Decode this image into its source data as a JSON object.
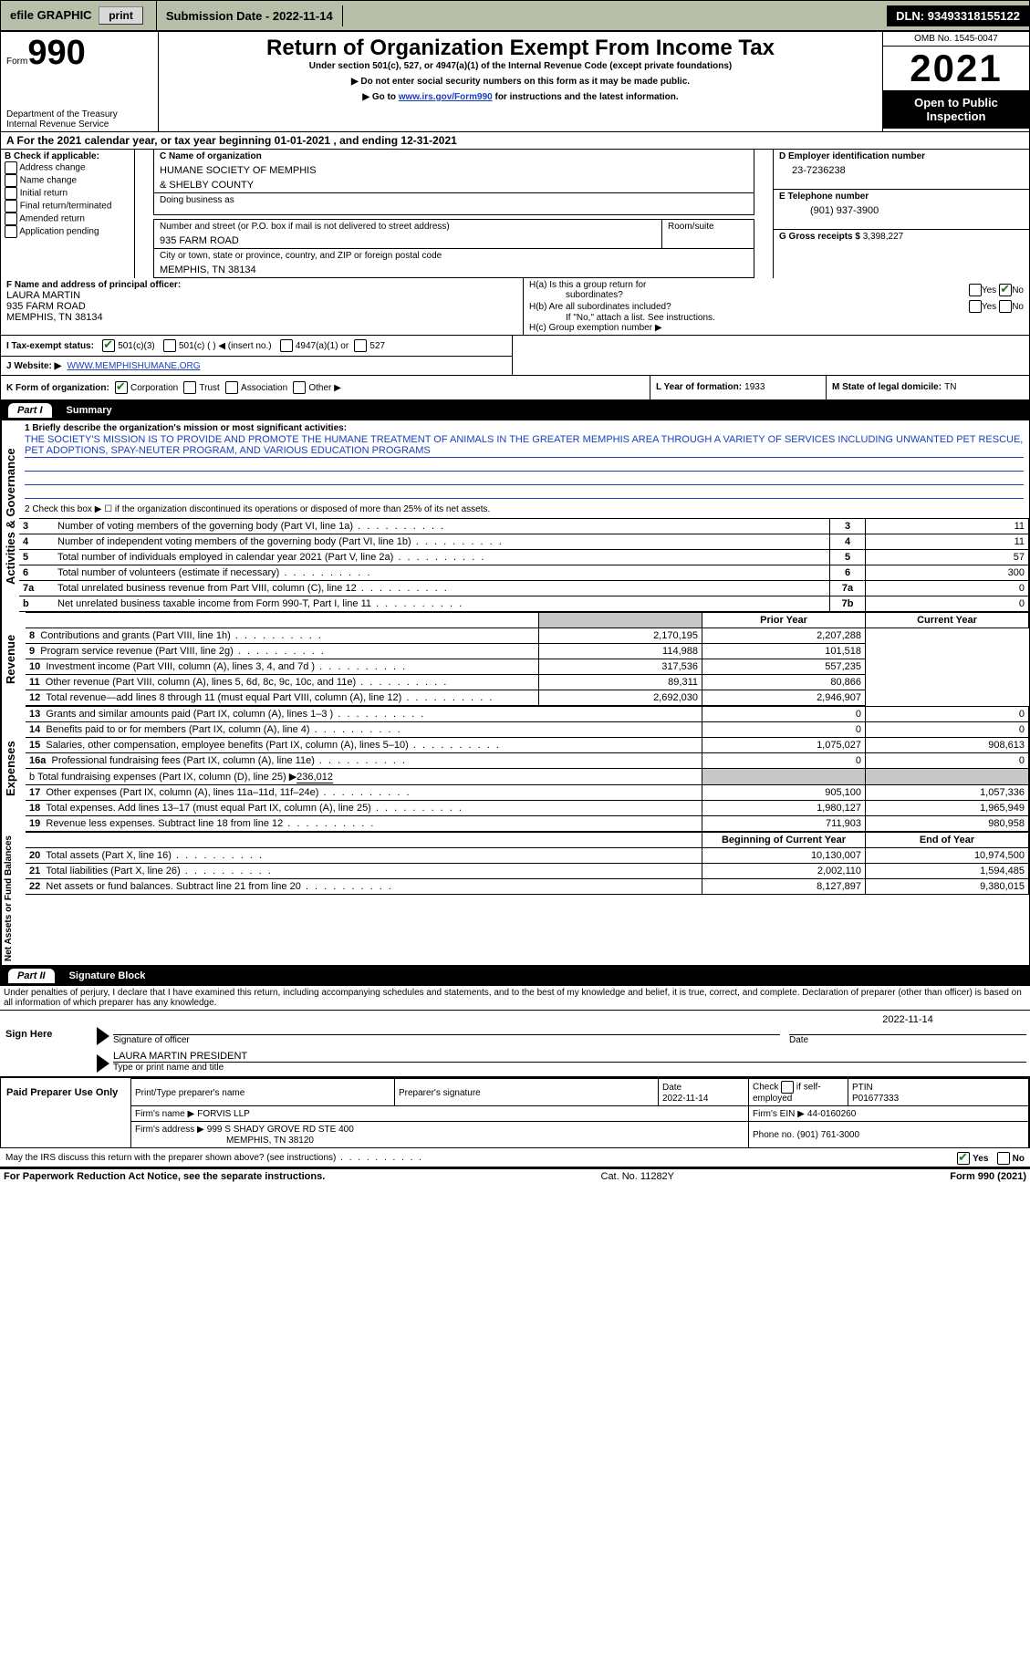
{
  "topbar": {
    "efile": "efile GRAPHIC",
    "print": "print",
    "submission_label": "Submission Date - ",
    "submission_date": "2022-11-14",
    "dln_label": "DLN: ",
    "dln": "93493318155122"
  },
  "header": {
    "form_label": "Form",
    "form_num": "990",
    "dept1": "Department of the Treasury",
    "dept2": "Internal Revenue Service",
    "title": "Return of Organization Exempt From Income Tax",
    "sub1": "Under section 501(c), 527, or 4947(a)(1) of the Internal Revenue Code (except private foundations)",
    "sub2": "▶ Do not enter social security numbers on this form as it may be made public.",
    "sub3_pre": "▶ Go to ",
    "sub3_link": "www.irs.gov/Form990",
    "sub3_post": " for instructions and the latest information.",
    "omb": "OMB No. 1545-0047",
    "year": "2021",
    "open": "Open to Public Inspection"
  },
  "a_line": {
    "pre": "A For the 2021 calendar year, or tax year beginning ",
    "begin": "01-01-2021",
    "mid": " , and ending ",
    "end": "12-31-2021"
  },
  "section_b": {
    "label": "B Check if applicable:",
    "items": [
      "Address change",
      "Name change",
      "Initial return",
      "Final return/terminated",
      "Amended return",
      "Application pending"
    ]
  },
  "section_c": {
    "name_label": "C Name of organization",
    "name1": "HUMANE SOCIETY OF MEMPHIS",
    "name2": "& SHELBY COUNTY",
    "dba_label": "Doing business as",
    "addr_label": "Number and street (or P.O. box if mail is not delivered to street address)",
    "room_label": "Room/suite",
    "addr": "935 FARM ROAD",
    "city_label": "City or town, state or province, country, and ZIP or foreign postal code",
    "city": "MEMPHIS, TN  38134"
  },
  "section_d": {
    "label": "D Employer identification number",
    "value": "23-7236238"
  },
  "section_e": {
    "label": "E Telephone number",
    "value": "(901) 937-3900"
  },
  "section_g": {
    "label": "G Gross receipts $",
    "value": "3,398,227"
  },
  "section_f": {
    "label": "F  Name and address of principal officer:",
    "name": "LAURA MARTIN",
    "addr": "935 FARM ROAD",
    "city": "MEMPHIS, TN  38134"
  },
  "section_h": {
    "ha1": "H(a)  Is this a group return for",
    "ha2": "subordinates?",
    "hb1": "H(b)  Are all subordinates included?",
    "hb2": "If \"No,\" attach a list. See instructions.",
    "hc": "H(c)  Group exemption number ▶",
    "yes": "Yes",
    "no": "No"
  },
  "section_i": {
    "label": "I    Tax-exempt status:",
    "opts": [
      "501(c)(3)",
      "501(c) (   ) ◀ (insert no.)",
      "4947(a)(1) or",
      "527"
    ]
  },
  "section_j": {
    "label": "J   Website: ▶",
    "value": "WWW.MEMPHISHUMANE.ORG"
  },
  "section_k": {
    "label": "K Form of organization:",
    "opts": [
      "Corporation",
      "Trust",
      "Association",
      "Other ▶"
    ]
  },
  "section_l": {
    "label": "L Year of formation:",
    "value": "1933"
  },
  "section_m": {
    "label": "M State of legal domicile:",
    "value": "TN"
  },
  "part1": {
    "label": "Part I",
    "title": "Summary"
  },
  "summary": {
    "sidebar": "Activities & Governance",
    "q1_label": "1  Briefly describe the organization's mission or most significant activities:",
    "q1_text": "THE SOCIETY'S MISSION IS TO PROVIDE AND PROMOTE THE HUMANE TREATMENT OF ANIMALS IN THE GREATER MEMPHIS AREA THROUGH A VARIETY OF SERVICES INCLUDING UNWANTED PET RESCUE, PET ADOPTIONS, SPAY-NEUTER PROGRAM, AND VARIOUS EDUCATION PROGRAMS",
    "q2": "2   Check this box ▶ ☐ if the organization discontinued its operations or disposed of more than 25% of its net assets.",
    "rows": [
      {
        "n": "3",
        "t": "Number of voting members of the governing body (Part VI, line 1a)",
        "c": "3",
        "v": "11"
      },
      {
        "n": "4",
        "t": "Number of independent voting members of the governing body (Part VI, line 1b)",
        "c": "4",
        "v": "11"
      },
      {
        "n": "5",
        "t": "Total number of individuals employed in calendar year 2021 (Part V, line 2a)",
        "c": "5",
        "v": "57"
      },
      {
        "n": "6",
        "t": "Total number of volunteers (estimate if necessary)",
        "c": "6",
        "v": "300"
      },
      {
        "n": "7a",
        "t": "Total unrelated business revenue from Part VIII, column (C), line 12",
        "c": "7a",
        "v": "0"
      },
      {
        "n": "b",
        "t": "Net unrelated business taxable income from Form 990-T, Part I, line 11",
        "c": "7b",
        "v": "0"
      }
    ]
  },
  "revenue": {
    "sidebar": "Revenue",
    "head_prior": "Prior Year",
    "head_current": "Current Year",
    "rows": [
      {
        "n": "8",
        "t": "Contributions and grants (Part VIII, line 1h)",
        "p": "2,170,195",
        "c": "2,207,288"
      },
      {
        "n": "9",
        "t": "Program service revenue (Part VIII, line 2g)",
        "p": "114,988",
        "c": "101,518"
      },
      {
        "n": "10",
        "t": "Investment income (Part VIII, column (A), lines 3, 4, and 7d )",
        "p": "317,536",
        "c": "557,235"
      },
      {
        "n": "11",
        "t": "Other revenue (Part VIII, column (A), lines 5, 6d, 8c, 9c, 10c, and 11e)",
        "p": "89,311",
        "c": "80,866"
      },
      {
        "n": "12",
        "t": "Total revenue—add lines 8 through 11 (must equal Part VIII, column (A), line 12)",
        "p": "2,692,030",
        "c": "2,946,907"
      }
    ]
  },
  "expenses": {
    "sidebar": "Expenses",
    "rows": [
      {
        "n": "13",
        "t": "Grants and similar amounts paid (Part IX, column (A), lines 1–3 )",
        "p": "0",
        "c": "0"
      },
      {
        "n": "14",
        "t": "Benefits paid to or for members (Part IX, column (A), line 4)",
        "p": "0",
        "c": "0"
      },
      {
        "n": "15",
        "t": "Salaries, other compensation, employee benefits (Part IX, column (A), lines 5–10)",
        "p": "1,075,027",
        "c": "908,613"
      },
      {
        "n": "16a",
        "t": "Professional fundraising fees (Part IX, column (A), line 11e)",
        "p": "0",
        "c": "0"
      }
    ],
    "b_line_pre": "b  Total fundraising expenses (Part IX, column (D), line 25) ▶",
    "b_line_val": "236,012",
    "rows2": [
      {
        "n": "17",
        "t": "Other expenses (Part IX, column (A), lines 11a–11d, 11f–24e)",
        "p": "905,100",
        "c": "1,057,336"
      },
      {
        "n": "18",
        "t": "Total expenses. Add lines 13–17 (must equal Part IX, column (A), line 25)",
        "p": "1,980,127",
        "c": "1,965,949"
      },
      {
        "n": "19",
        "t": "Revenue less expenses. Subtract line 18 from line 12",
        "p": "711,903",
        "c": "980,958"
      }
    ]
  },
  "netassets": {
    "sidebar": "Net Assets or Fund Balances",
    "head_begin": "Beginning of Current Year",
    "head_end": "End of Year",
    "rows": [
      {
        "n": "20",
        "t": "Total assets (Part X, line 16)",
        "p": "10,130,007",
        "c": "10,974,500"
      },
      {
        "n": "21",
        "t": "Total liabilities (Part X, line 26)",
        "p": "2,002,110",
        "c": "1,594,485"
      },
      {
        "n": "22",
        "t": "Net assets or fund balances. Subtract line 21 from line 20",
        "p": "8,127,897",
        "c": "9,380,015"
      }
    ]
  },
  "part2": {
    "label": "Part II",
    "title": "Signature Block"
  },
  "sig": {
    "decl": "Under penalties of perjury, I declare that I have examined this return, including accompanying schedules and statements, and to the best of my knowledge and belief, it is true, correct, and complete. Declaration of preparer (other than officer) is based on all information of which preparer has any knowledge.",
    "sign_here": "Sign Here",
    "sig_officer": "Signature of officer",
    "date": "Date",
    "sig_date": "2022-11-14",
    "name_title": "LAURA MARTIN  PRESIDENT",
    "type_print": "Type or print name and title"
  },
  "preparer": {
    "label": "Paid Preparer Use Only",
    "h1": "Print/Type preparer's name",
    "h2": "Preparer's signature",
    "h3": "Date",
    "h3v": "2022-11-14",
    "h4a": "Check",
    "h4b": "if self-employed",
    "h5": "PTIN",
    "h5v": "P01677333",
    "firm_label": "Firm's name    ▶",
    "firm_name": "FORVIS LLP",
    "ein_label": "Firm's EIN ▶",
    "ein": "44-0160260",
    "addr_label": "Firm's address ▶",
    "addr1": "999 S SHADY GROVE RD STE 400",
    "addr2": "MEMPHIS, TN  38120",
    "phone_label": "Phone no.",
    "phone": "(901) 761-3000"
  },
  "discuss": {
    "q": "May the IRS discuss this return with the preparer shown above? (see instructions)",
    "yes": "Yes",
    "no": "No"
  },
  "footer": {
    "left": "For Paperwork Reduction Act Notice, see the separate instructions.",
    "mid": "Cat. No. 11282Y",
    "right": "Form 990 (2021)"
  },
  "colors": {
    "topbar_bg": "#b8bfa8",
    "link": "#1a3fbf",
    "check_green": "#1a7a1a"
  }
}
